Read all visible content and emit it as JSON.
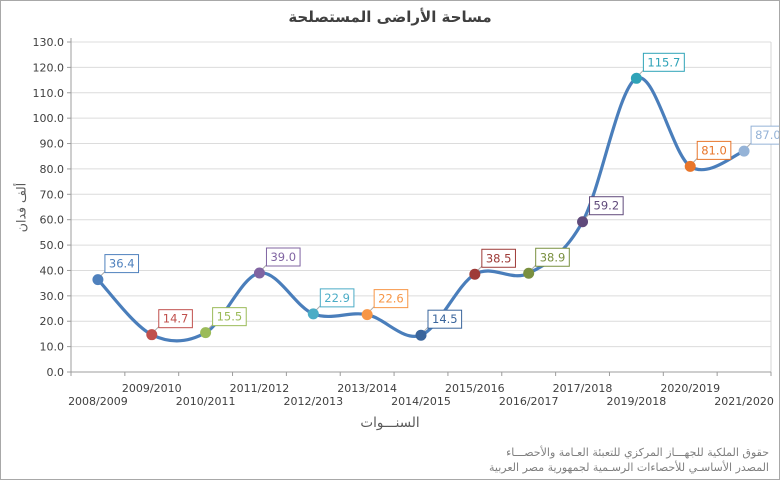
{
  "chart": {
    "title": "مساحة الأراضى المستصلحة",
    "y_axis_title": "ألف فدان",
    "x_axis_title": "السنـــوات",
    "footer_line1": "حقوق الملكية للجهـــاز المركزي للتعبئة العـامة والأحصـــاء",
    "footer_line2": "المصدر الأساسـي للأحصاءات الرسـمية لجمهورية مصر العربية"
  },
  "chart_data": {
    "type": "line",
    "smooth": true,
    "title": "مساحة الأراضى المستصلحة",
    "xlabel": "السنـــوات",
    "ylabel": "ألف فدان",
    "categories": [
      "2008/2009",
      "2009/2010",
      "2010/2011",
      "2011/2012",
      "2012/2013",
      "2013/2014",
      "2014/2015",
      "2015/2016",
      "2016/2017",
      "2017/2018",
      "2019/2018",
      "2020/2019",
      "2021/2020"
    ],
    "values": [
      36.4,
      14.7,
      15.5,
      39.0,
      22.9,
      22.6,
      14.5,
      38.5,
      38.9,
      59.2,
      115.7,
      81.0,
      87.0
    ],
    "data_labels": [
      "36.4",
      "14.7",
      "15.5",
      "39.0",
      "22.9",
      "22.6",
      "14.5",
      "38.5",
      "38.9",
      "59.2",
      "115.7",
      "81.0",
      "87.0"
    ],
    "point_colors": [
      "#4F81BD",
      "#C0504D",
      "#9BBB59",
      "#8064A2",
      "#4BACC6",
      "#F79646",
      "#3A659C",
      "#9E3B38",
      "#7A9040",
      "#604A7B",
      "#2FA3B8",
      "#E8762B",
      "#95B3D7"
    ],
    "line_color": "#4A7EBB",
    "ylim": [
      0,
      130
    ],
    "y_tick_step": 10,
    "y_tick_format": "one-decimal",
    "grid": "horizontal",
    "gridline_color": "#DCDCDC",
    "axis_color": "#9C9C9C",
    "tick_label_color": "#3F3F3F",
    "legend": "none",
    "x_labels_staggered": true
  }
}
